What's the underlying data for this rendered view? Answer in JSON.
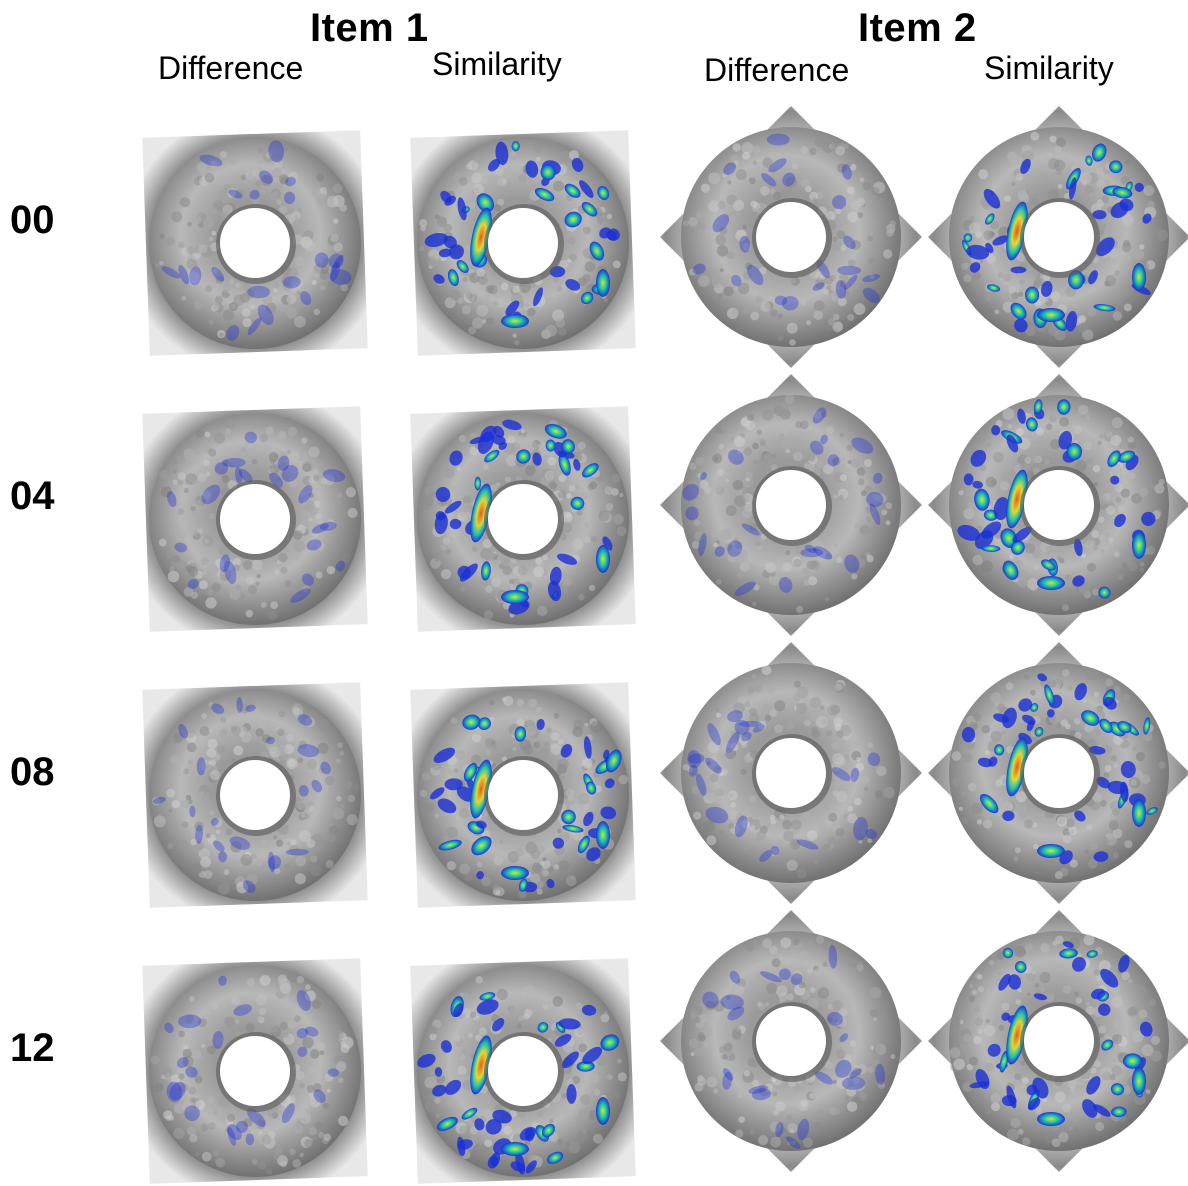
{
  "columns": {
    "item1": {
      "title": "Item 1",
      "difference": "Difference",
      "similarity": "Similarity"
    },
    "item2": {
      "title": "Item 2",
      "difference": "Difference",
      "similarity": "Similarity"
    }
  },
  "rows": [
    "00",
    "04",
    "08",
    "12"
  ],
  "colors": {
    "surface": "#b8b8b8",
    "surface_dark": "#6e6e6e",
    "heat_low": "#1a2fd6",
    "heat_mid": "#19c4a8",
    "heat_high": "#e65a1a",
    "background": "#ffffff"
  }
}
